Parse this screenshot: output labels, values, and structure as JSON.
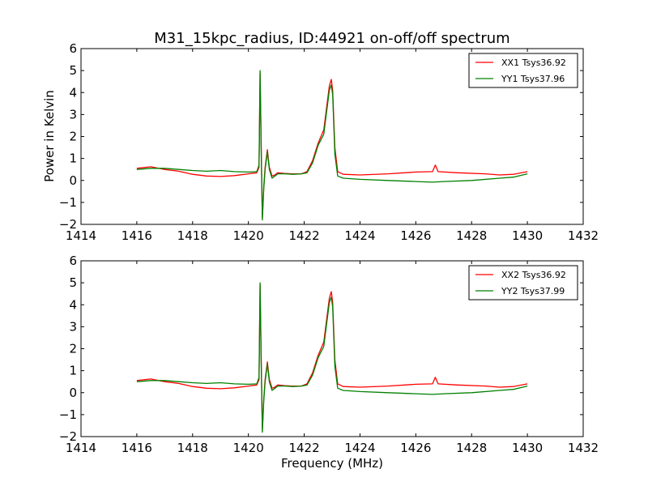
{
  "figure": {
    "title": "M31_15kpc_radius, ID:44921 on-off/off spectrum",
    "ylabel": "Power in Kelvin",
    "xlabel": "Frequency (MHz)"
  },
  "colors": {
    "xx": "#ff0000",
    "yy": "#008000"
  },
  "chart_data": [
    {
      "type": "line",
      "xlim": [
        1414,
        1432
      ],
      "ylim": [
        -2,
        6
      ],
      "xticks": [
        1414,
        1416,
        1418,
        1420,
        1422,
        1424,
        1426,
        1428,
        1430,
        1432
      ],
      "yticks": [
        -2,
        -1,
        0,
        1,
        2,
        3,
        4,
        5,
        6
      ],
      "legend_position": "top-right",
      "series": [
        {
          "name": "XX1 Tsys36.92",
          "color": "#ff0000",
          "points": [
            [
              1416.0,
              0.55
            ],
            [
              1416.5,
              0.62
            ],
            [
              1417.0,
              0.5
            ],
            [
              1417.5,
              0.42
            ],
            [
              1418.0,
              0.28
            ],
            [
              1418.5,
              0.2
            ],
            [
              1419.0,
              0.18
            ],
            [
              1419.5,
              0.22
            ],
            [
              1420.0,
              0.3
            ],
            [
              1420.3,
              0.35
            ],
            [
              1420.38,
              0.6
            ],
            [
              1420.42,
              4.9
            ],
            [
              1420.46,
              1.5
            ],
            [
              1420.5,
              -1.7
            ],
            [
              1420.55,
              -0.3
            ],
            [
              1420.6,
              0.6
            ],
            [
              1420.68,
              1.4
            ],
            [
              1420.75,
              0.6
            ],
            [
              1420.85,
              0.2
            ],
            [
              1420.95,
              0.25
            ],
            [
              1421.05,
              0.35
            ],
            [
              1421.3,
              0.32
            ],
            [
              1421.6,
              0.3
            ],
            [
              1421.9,
              0.3
            ],
            [
              1422.1,
              0.4
            ],
            [
              1422.3,
              0.9
            ],
            [
              1422.5,
              1.7
            ],
            [
              1422.7,
              2.3
            ],
            [
              1422.9,
              4.3
            ],
            [
              1422.97,
              4.6
            ],
            [
              1423.02,
              4.1
            ],
            [
              1423.1,
              1.5
            ],
            [
              1423.2,
              0.4
            ],
            [
              1423.4,
              0.28
            ],
            [
              1424.0,
              0.25
            ],
            [
              1425.0,
              0.3
            ],
            [
              1426.0,
              0.38
            ],
            [
              1426.6,
              0.4
            ],
            [
              1426.7,
              0.7
            ],
            [
              1426.8,
              0.4
            ],
            [
              1427.5,
              0.35
            ],
            [
              1428.5,
              0.3
            ],
            [
              1429.0,
              0.25
            ],
            [
              1429.5,
              0.28
            ],
            [
              1430.0,
              0.4
            ]
          ]
        },
        {
          "name": "YY1 Tsys37.96",
          "color": "#008000",
          "points": [
            [
              1416.0,
              0.5
            ],
            [
              1416.5,
              0.55
            ],
            [
              1417.0,
              0.55
            ],
            [
              1417.5,
              0.5
            ],
            [
              1418.0,
              0.45
            ],
            [
              1418.5,
              0.42
            ],
            [
              1419.0,
              0.45
            ],
            [
              1419.5,
              0.4
            ],
            [
              1420.0,
              0.38
            ],
            [
              1420.3,
              0.4
            ],
            [
              1420.38,
              0.7
            ],
            [
              1420.42,
              5.0
            ],
            [
              1420.46,
              1.3
            ],
            [
              1420.5,
              -1.8
            ],
            [
              1420.55,
              -0.4
            ],
            [
              1420.6,
              0.5
            ],
            [
              1420.68,
              1.3
            ],
            [
              1420.75,
              0.5
            ],
            [
              1420.85,
              0.1
            ],
            [
              1420.95,
              0.2
            ],
            [
              1421.05,
              0.3
            ],
            [
              1421.3,
              0.3
            ],
            [
              1421.6,
              0.28
            ],
            [
              1421.9,
              0.3
            ],
            [
              1422.1,
              0.35
            ],
            [
              1422.3,
              0.8
            ],
            [
              1422.5,
              1.6
            ],
            [
              1422.7,
              2.1
            ],
            [
              1422.9,
              4.1
            ],
            [
              1422.97,
              4.35
            ],
            [
              1423.02,
              3.9
            ],
            [
              1423.1,
              1.2
            ],
            [
              1423.2,
              0.2
            ],
            [
              1423.4,
              0.1
            ],
            [
              1424.0,
              0.05
            ],
            [
              1425.0,
              0.0
            ],
            [
              1426.0,
              -0.05
            ],
            [
              1426.6,
              -0.08
            ],
            [
              1427.0,
              -0.05
            ],
            [
              1428.0,
              0.0
            ],
            [
              1429.0,
              0.1
            ],
            [
              1429.5,
              0.15
            ],
            [
              1430.0,
              0.3
            ]
          ]
        }
      ]
    },
    {
      "type": "line",
      "xlim": [
        1414,
        1432
      ],
      "ylim": [
        -2,
        6
      ],
      "xticks": [
        1414,
        1416,
        1418,
        1420,
        1422,
        1424,
        1426,
        1428,
        1430,
        1432
      ],
      "yticks": [
        -2,
        -1,
        0,
        1,
        2,
        3,
        4,
        5,
        6
      ],
      "legend_position": "top-right",
      "series": [
        {
          "name": "XX2 Tsys36.92",
          "color": "#ff0000",
          "points": [
            [
              1416.0,
              0.55
            ],
            [
              1416.5,
              0.62
            ],
            [
              1417.0,
              0.5
            ],
            [
              1417.5,
              0.42
            ],
            [
              1418.0,
              0.28
            ],
            [
              1418.5,
              0.2
            ],
            [
              1419.0,
              0.18
            ],
            [
              1419.5,
              0.22
            ],
            [
              1420.0,
              0.3
            ],
            [
              1420.3,
              0.35
            ],
            [
              1420.38,
              0.6
            ],
            [
              1420.42,
              4.9
            ],
            [
              1420.46,
              1.5
            ],
            [
              1420.5,
              -1.7
            ],
            [
              1420.55,
              -0.3
            ],
            [
              1420.6,
              0.6
            ],
            [
              1420.68,
              1.4
            ],
            [
              1420.75,
              0.6
            ],
            [
              1420.85,
              0.2
            ],
            [
              1420.95,
              0.25
            ],
            [
              1421.05,
              0.35
            ],
            [
              1421.3,
              0.32
            ],
            [
              1421.6,
              0.3
            ],
            [
              1421.9,
              0.3
            ],
            [
              1422.1,
              0.4
            ],
            [
              1422.3,
              0.9
            ],
            [
              1422.5,
              1.7
            ],
            [
              1422.7,
              2.3
            ],
            [
              1422.9,
              4.3
            ],
            [
              1422.97,
              4.6
            ],
            [
              1423.02,
              4.1
            ],
            [
              1423.1,
              1.5
            ],
            [
              1423.2,
              0.4
            ],
            [
              1423.4,
              0.28
            ],
            [
              1424.0,
              0.25
            ],
            [
              1425.0,
              0.3
            ],
            [
              1426.0,
              0.38
            ],
            [
              1426.6,
              0.4
            ],
            [
              1426.7,
              0.7
            ],
            [
              1426.8,
              0.4
            ],
            [
              1427.5,
              0.35
            ],
            [
              1428.5,
              0.3
            ],
            [
              1429.0,
              0.25
            ],
            [
              1429.5,
              0.28
            ],
            [
              1430.0,
              0.4
            ]
          ]
        },
        {
          "name": "YY2 Tsys37.99",
          "color": "#008000",
          "points": [
            [
              1416.0,
              0.5
            ],
            [
              1416.5,
              0.55
            ],
            [
              1417.0,
              0.55
            ],
            [
              1417.5,
              0.5
            ],
            [
              1418.0,
              0.45
            ],
            [
              1418.5,
              0.42
            ],
            [
              1419.0,
              0.45
            ],
            [
              1419.5,
              0.4
            ],
            [
              1420.0,
              0.38
            ],
            [
              1420.3,
              0.4
            ],
            [
              1420.38,
              0.7
            ],
            [
              1420.42,
              5.0
            ],
            [
              1420.46,
              1.3
            ],
            [
              1420.5,
              -1.8
            ],
            [
              1420.55,
              -0.4
            ],
            [
              1420.6,
              0.5
            ],
            [
              1420.68,
              1.3
            ],
            [
              1420.75,
              0.5
            ],
            [
              1420.85,
              0.1
            ],
            [
              1420.95,
              0.2
            ],
            [
              1421.05,
              0.3
            ],
            [
              1421.3,
              0.3
            ],
            [
              1421.6,
              0.28
            ],
            [
              1421.9,
              0.3
            ],
            [
              1422.1,
              0.35
            ],
            [
              1422.3,
              0.8
            ],
            [
              1422.5,
              1.6
            ],
            [
              1422.7,
              2.1
            ],
            [
              1422.9,
              4.1
            ],
            [
              1422.97,
              4.35
            ],
            [
              1423.02,
              3.9
            ],
            [
              1423.1,
              1.2
            ],
            [
              1423.2,
              0.2
            ],
            [
              1423.4,
              0.1
            ],
            [
              1424.0,
              0.05
            ],
            [
              1425.0,
              0.0
            ],
            [
              1426.0,
              -0.05
            ],
            [
              1426.6,
              -0.08
            ],
            [
              1427.0,
              -0.05
            ],
            [
              1428.0,
              0.0
            ],
            [
              1429.0,
              0.1
            ],
            [
              1429.5,
              0.15
            ],
            [
              1430.0,
              0.3
            ]
          ]
        }
      ]
    }
  ]
}
